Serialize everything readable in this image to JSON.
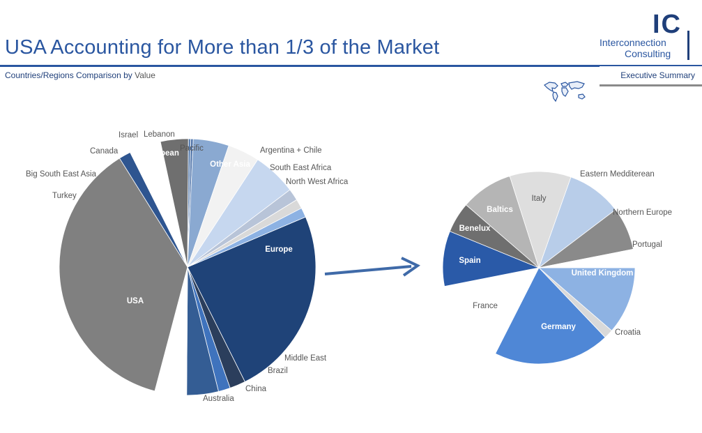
{
  "header": {
    "title": "USA Accounting for More than 1/3 of the Market",
    "subtitle_main": "Countries/Regions Comparison by ",
    "subtitle_value": "Value",
    "section": "Executive Summary"
  },
  "logo": {
    "mark": "IC",
    "line1": "Interconnection",
    "line2": "Consulting"
  },
  "chart_data": [
    {
      "type": "pie",
      "categories": [
        "Europe",
        "Middle East",
        "Brazil",
        "China",
        "Australia",
        "USA",
        "Turkey",
        "Big South East Asia",
        "Canada",
        "Israel",
        "Lebanon",
        "Carribean",
        "Pacific",
        "Other Asia",
        "Argentina + Chile",
        "South East Africa",
        "North West Africa"
      ],
      "values": [
        24.0,
        2.0,
        1.5,
        4.0,
        4.0,
        37.0,
        1.5,
        4.0,
        3.5,
        0.3,
        0.3,
        4.5,
        4.0,
        5.5,
        1.5,
        1.2,
        1.2
      ],
      "colors": [
        "#1f4378",
        "#2b3e5c",
        "#3f73bd",
        "#345d94",
        "#ffffff",
        "#808080",
        "#2e5590",
        "#ffffff",
        "#6f6f6f",
        "#5a7fb0",
        "#4d72a8",
        "#8aa9d1",
        "#f2f2f2",
        "#c6d7ef",
        "#b8c4d8",
        "#d9d9d9",
        "#8db2e3"
      ],
      "inside_labels": [
        "Europe",
        "USA",
        "Carribean",
        "Other Asia"
      ]
    },
    {
      "type": "pie",
      "categories": [
        "United Kingdom",
        "Croatia",
        "Germany",
        "France",
        "Spain",
        "Benelux",
        "Baltics",
        "Italy",
        "Eastern Medditerean",
        "Northern Europe",
        "Portugal"
      ],
      "values": [
        11.0,
        1.5,
        19.0,
        14.0,
        9.0,
        5.0,
        8.5,
        10.0,
        9.0,
        7.0,
        3.0
      ],
      "colors": [
        "#8db2e3",
        "#d9d9d9",
        "#4f87d6",
        "#ffffff",
        "#2a5aa8",
        "#6f6f6f",
        "#b5b5b5",
        "#dedede",
        "#b8cde9",
        "#8a8a8a",
        "#ffffff"
      ],
      "inside_labels": [
        "United Kingdom",
        "Germany",
        "Spain",
        "Benelux",
        "Baltics"
      ]
    }
  ]
}
